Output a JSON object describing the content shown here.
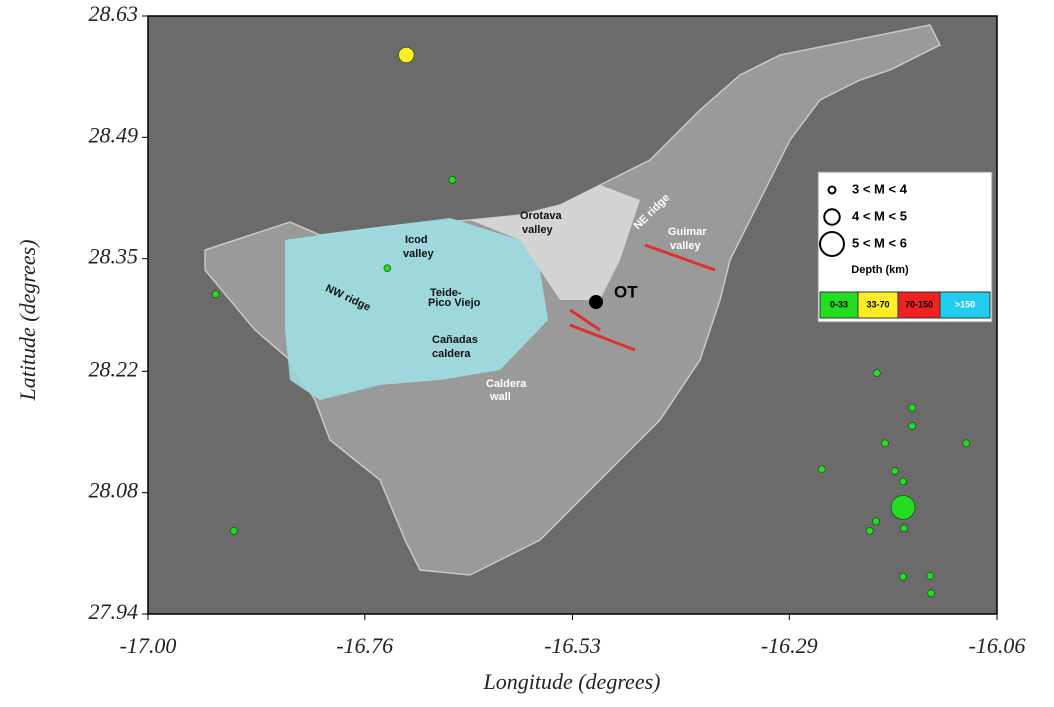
{
  "chart_data": {
    "type": "scatter",
    "xlabel": "Longitude (degrees)",
    "ylabel": "Latitude (degrees)",
    "xlim": [
      -17.0,
      -16.06
    ],
    "ylim": [
      27.94,
      28.63
    ],
    "xticks": [
      {
        "value": -17.0,
        "label": "-17.00"
      },
      -16.76,
      -16.53,
      -16.29,
      -16.06
    ],
    "yticks": [
      27.94,
      28.08,
      28.22,
      28.35,
      28.49,
      28.63
    ],
    "legend_title": "Depth (km)",
    "series": [
      {
        "name": "0-33",
        "color": "#22dd22",
        "x": [
          -16.663,
          -16.735,
          -16.925,
          -16.905,
          -16.193,
          -16.154,
          -16.154,
          -16.184,
          -16.094,
          -16.254,
          -16.173,
          -16.164,
          -16.164,
          -16.163,
          -16.194,
          -16.201,
          -16.164,
          -16.134,
          -16.133
        ],
        "values": [
          28.441,
          28.339,
          28.309,
          28.036,
          28.218,
          28.178,
          28.157,
          28.137,
          28.137,
          28.107,
          28.105,
          28.093,
          28.063,
          28.039,
          28.047,
          28.036,
          27.983,
          27.984,
          27.964
        ],
        "sizes": [
          3.5,
          3.5,
          3.5,
          3.5,
          3.5,
          3.5,
          3.5,
          3.5,
          3.5,
          3.5,
          3.5,
          3.5,
          5.5,
          3.5,
          3.5,
          3.5,
          3.5,
          3.5,
          3.5
        ]
      },
      {
        "name": "33-70",
        "color": "#ffee22",
        "x": [
          -16.714
        ],
        "values": [
          28.585
        ],
        "sizes": [
          4.5
        ]
      },
      {
        "name": "70-150",
        "color": "#ee2222",
        "x": [],
        "values": [],
        "sizes": []
      },
      {
        "name": ">150",
        "color": "#22ccee",
        "x": [],
        "values": [],
        "sizes": []
      }
    ],
    "size_legend": [
      {
        "label": "3 < M < 4",
        "value": 3.5
      },
      {
        "label": "4 < M < 5",
        "value": 4.5
      },
      {
        "label": "5 < M < 6",
        "value": 5.5
      }
    ],
    "annotations": [
      "Icod",
      "valley",
      "Orotava",
      "valley",
      "NE ridge",
      "Guimar",
      "valley",
      "NW ridge",
      "Teide-",
      "Pico Viejo",
      "Cañadas",
      "caldera",
      "Caldera",
      "wall",
      "OT"
    ]
  }
}
